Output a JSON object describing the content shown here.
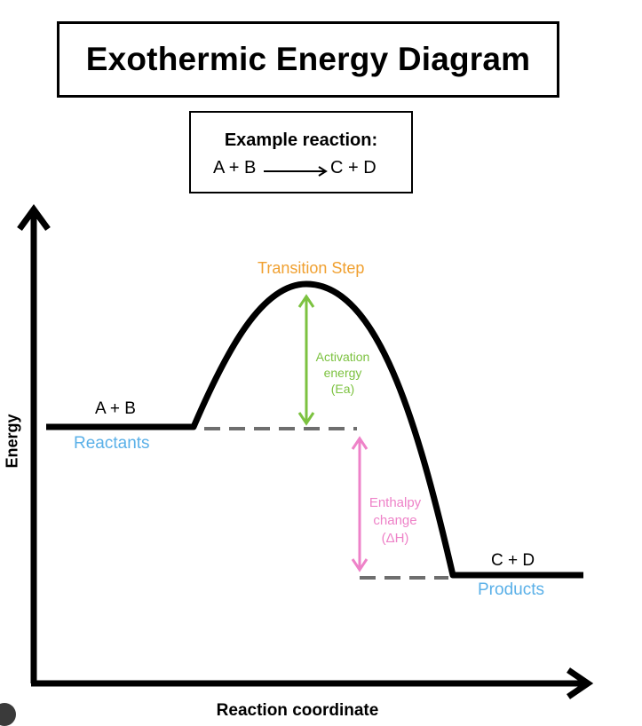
{
  "title": "Exothermic Energy Diagram",
  "example": {
    "heading": "Example reaction:",
    "reactants": "A + B",
    "products": "C + D"
  },
  "labels": {
    "reactant_formula": "A + B",
    "reactants": "Reactants",
    "transition": "Transition Step",
    "activation_line1": "Activation",
    "activation_line2": "energy",
    "activation_line3": "(Ea)",
    "enthalpy_line1": "Enthalpy",
    "enthalpy_line2": "change",
    "enthalpy_line3": "(ΔH)",
    "product_formula": "C + D",
    "products": "Products"
  },
  "axes": {
    "y": "Energy",
    "x": "Reaction coordinate"
  },
  "colors": {
    "curve": "#000000",
    "dashed": "#6e6e6e",
    "reactants_products": "#5ab0e8",
    "transition": "#f0a030",
    "activation": "#7cc240",
    "enthalpy": "#ee82c8"
  }
}
